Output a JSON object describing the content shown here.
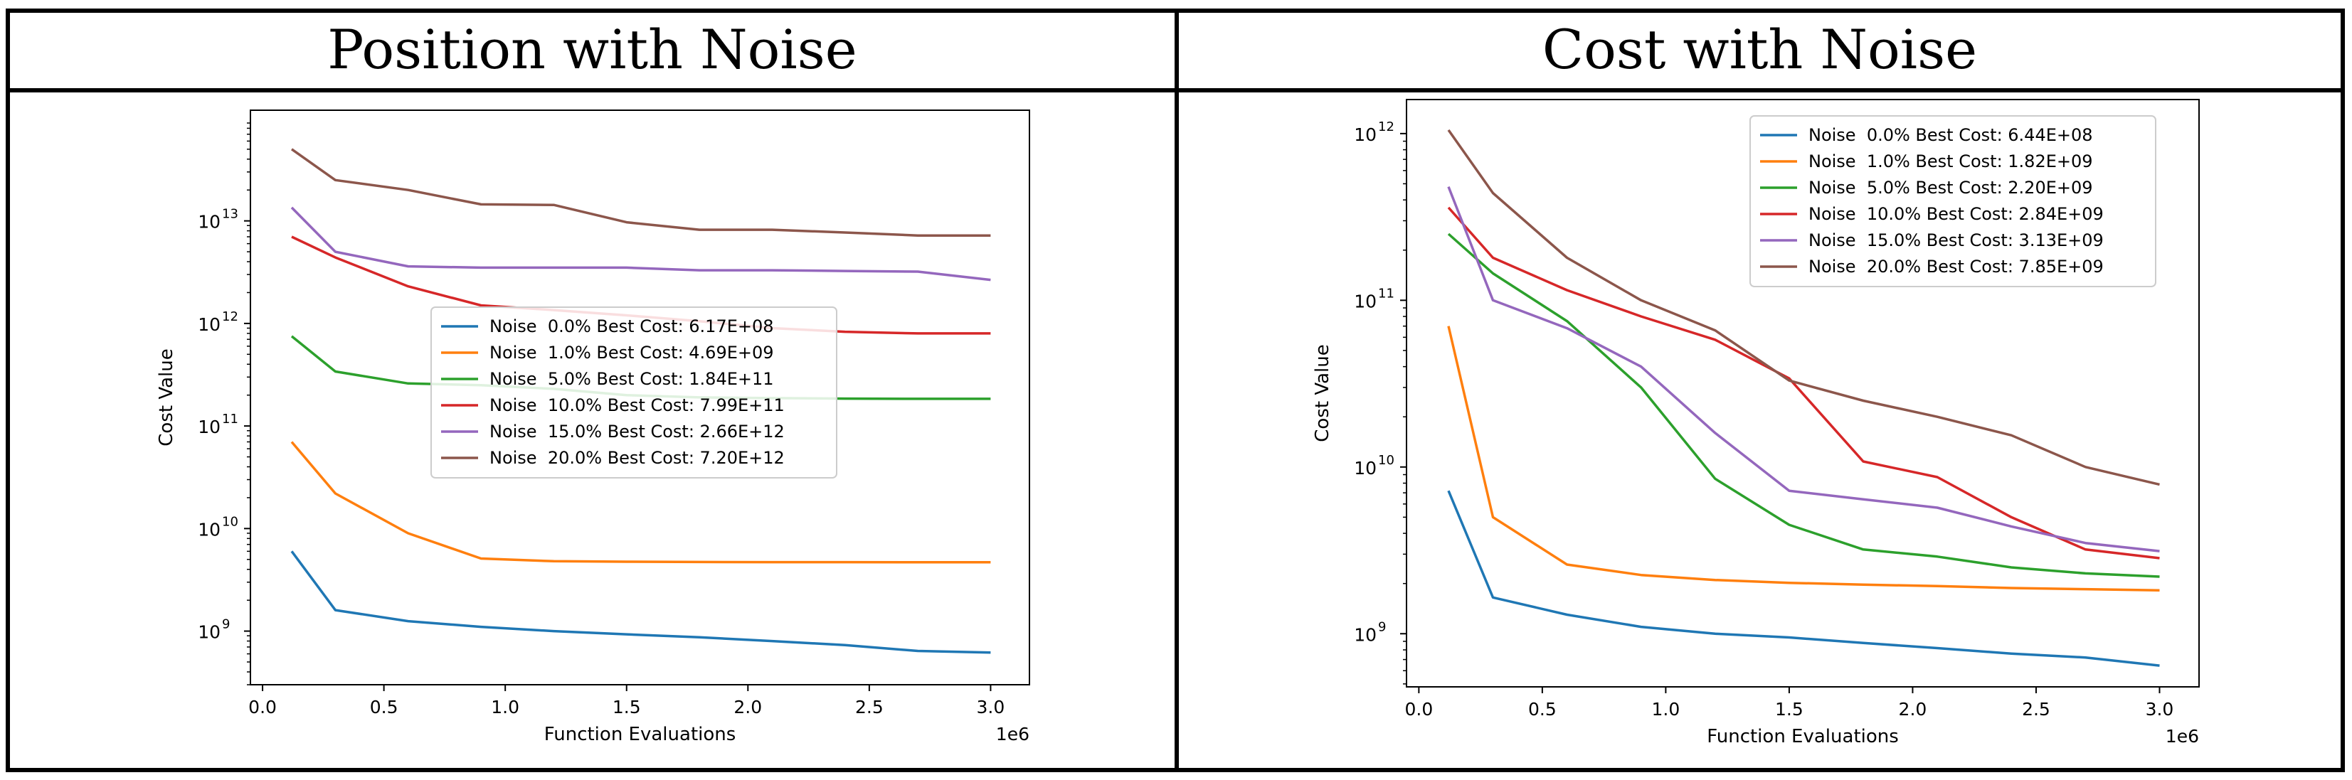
{
  "panels": {
    "left_title": "Position with Noise",
    "right_title": "Cost with Noise"
  },
  "colors": {
    "series": [
      "#1f77b4",
      "#ff7f0e",
      "#2ca02c",
      "#d62728",
      "#9467bd",
      "#8c564b"
    ]
  },
  "chart_data": [
    {
      "type": "line",
      "title": "Position with Noise",
      "xlabel": "Function Evaluations",
      "ylabel": "Cost Value",
      "x_offset_label": "1e6",
      "yscale": "log",
      "xlim": [
        -0.05,
        3.16
      ],
      "ylim": [
        300000000,
        120000000000000
      ],
      "x_ticks": [
        0.0,
        0.5,
        1.0,
        1.5,
        2.0,
        2.5,
        3.0
      ],
      "x_tick_labels": [
        "0.0",
        "0.5",
        "1.0",
        "1.5",
        "2.0",
        "2.5",
        "3.0"
      ],
      "y_ticks": [
        1000000000,
        10000000000,
        100000000000,
        1000000000000,
        10000000000000
      ],
      "y_tick_labels": [
        [
          "10",
          "9"
        ],
        [
          "10",
          "10"
        ],
        [
          "10",
          "11"
        ],
        [
          "10",
          "12"
        ],
        [
          "10",
          "13"
        ]
      ],
      "legend_position": "center-right",
      "x": [
        0.12,
        0.3,
        0.6,
        0.9,
        1.2,
        1.5,
        1.8,
        2.1,
        2.4,
        2.7,
        3.0
      ],
      "series": [
        {
          "name": "Noise  0.0% Best Cost: 6.17E+08",
          "values": [
            6000000000.0,
            1600000000.0,
            1250000000.0,
            1100000000.0,
            1000000000.0,
            930000000.0,
            870000000.0,
            800000000.0,
            730000000.0,
            640000000.0,
            617000000.0
          ]
        },
        {
          "name": "Noise  1.0% Best Cost: 4.69E+09",
          "values": [
            70000000000.0,
            22000000000.0,
            9000000000.0,
            5100000000.0,
            4800000000.0,
            4750000000.0,
            4720000000.0,
            4700000000.0,
            4700000000.0,
            4690000000.0,
            4690000000.0
          ]
        },
        {
          "name": "Noise  5.0% Best Cost: 1.84E+11",
          "values": [
            750000000000.0,
            340000000000.0,
            260000000000.0,
            250000000000.0,
            230000000000.0,
            200000000000.0,
            190000000000.0,
            187000000000.0,
            185000000000.0,
            184000000000.0,
            184000000000.0
          ]
        },
        {
          "name": "Noise  10.0% Best Cost: 7.99E+11",
          "values": [
            7000000000000.0,
            4400000000000.0,
            2300000000000.0,
            1500000000000.0,
            1350000000000.0,
            1200000000000.0,
            1050000000000.0,
            900000000000.0,
            830000000000.0,
            800000000000.0,
            799000000000.0
          ]
        },
        {
          "name": "Noise  15.0% Best Cost: 2.66E+12",
          "values": [
            13500000000000.0,
            5000000000000.0,
            3600000000000.0,
            3500000000000.0,
            3500000000000.0,
            3500000000000.0,
            3300000000000.0,
            3300000000000.0,
            3250000000000.0,
            3200000000000.0,
            2660000000000.0
          ]
        },
        {
          "name": "Noise  20.0% Best Cost: 7.20E+12",
          "values": [
            50000000000000.0,
            25000000000000.0,
            20000000000000.0,
            14500000000000.0,
            14300000000000.0,
            9700000000000.0,
            8200000000000.0,
            8200000000000.0,
            7700000000000.0,
            7200000000000.0,
            7200000000000.0
          ]
        }
      ]
    },
    {
      "type": "line",
      "title": "Cost with Noise",
      "xlabel": "Function Evaluations",
      "ylabel": "Cost Value",
      "x_offset_label": "1e6",
      "yscale": "log",
      "xlim": [
        -0.05,
        3.16
      ],
      "ylim": [
        480000000,
        1600000000000
      ],
      "x_ticks": [
        0.0,
        0.5,
        1.0,
        1.5,
        2.0,
        2.5,
        3.0
      ],
      "x_tick_labels": [
        "0.0",
        "0.5",
        "1.0",
        "1.5",
        "2.0",
        "2.5",
        "3.0"
      ],
      "y_ticks": [
        1000000000,
        10000000000,
        100000000000,
        1000000000000
      ],
      "y_tick_labels": [
        [
          "10",
          "9"
        ],
        [
          "10",
          "10"
        ],
        [
          "10",
          "11"
        ],
        [
          "10",
          "12"
        ]
      ],
      "legend_position": "upper-right",
      "x": [
        0.12,
        0.3,
        0.6,
        0.9,
        1.2,
        1.5,
        1.8,
        2.1,
        2.4,
        2.7,
        3.0
      ],
      "series": [
        {
          "name": "Noise  0.0% Best Cost: 6.44E+08",
          "values": [
            7200000000.0,
            1650000000.0,
            1300000000.0,
            1100000000.0,
            1000000000.0,
            950000000.0,
            880000000.0,
            820000000.0,
            760000000.0,
            720000000.0,
            644000000.0
          ]
        },
        {
          "name": "Noise  1.0% Best Cost: 1.82E+09",
          "values": [
            70000000000.0,
            5000000000.0,
            2600000000.0,
            2250000000.0,
            2100000000.0,
            2020000000.0,
            1970000000.0,
            1930000000.0,
            1880000000.0,
            1850000000.0,
            1820000000.0
          ]
        },
        {
          "name": "Noise  5.0% Best Cost: 2.20E+09",
          "values": [
            250000000000.0,
            145000000000.0,
            75000000000.0,
            30000000000.0,
            8500000000.0,
            4500000000.0,
            3200000000.0,
            2900000000.0,
            2500000000.0,
            2300000000.0,
            2200000000.0
          ]
        },
        {
          "name": "Noise  10.0% Best Cost: 2.84E+09",
          "values": [
            360000000000.0,
            180000000000.0,
            115000000000.0,
            80000000000.0,
            58000000000.0,
            34000000000.0,
            10800000000.0,
            8700000000.0,
            5000000000.0,
            3200000000.0,
            2840000000.0
          ]
        },
        {
          "name": "Noise  15.0% Best Cost: 3.13E+09",
          "values": [
            480000000000.0,
            100000000000.0,
            68000000000.0,
            40000000000.0,
            16000000000.0,
            7200000000.0,
            6400000000.0,
            5700000000.0,
            4400000000.0,
            3500000000.0,
            3130000000.0
          ]
        },
        {
          "name": "Noise  20.0% Best Cost: 7.85E+09",
          "values": [
            1050000000000.0,
            440000000000.0,
            180000000000.0,
            100000000000.0,
            66000000000.0,
            33000000000.0,
            25000000000.0,
            20000000000.0,
            15500000000.0,
            10000000000.0,
            7850000000.0
          ]
        }
      ]
    }
  ]
}
